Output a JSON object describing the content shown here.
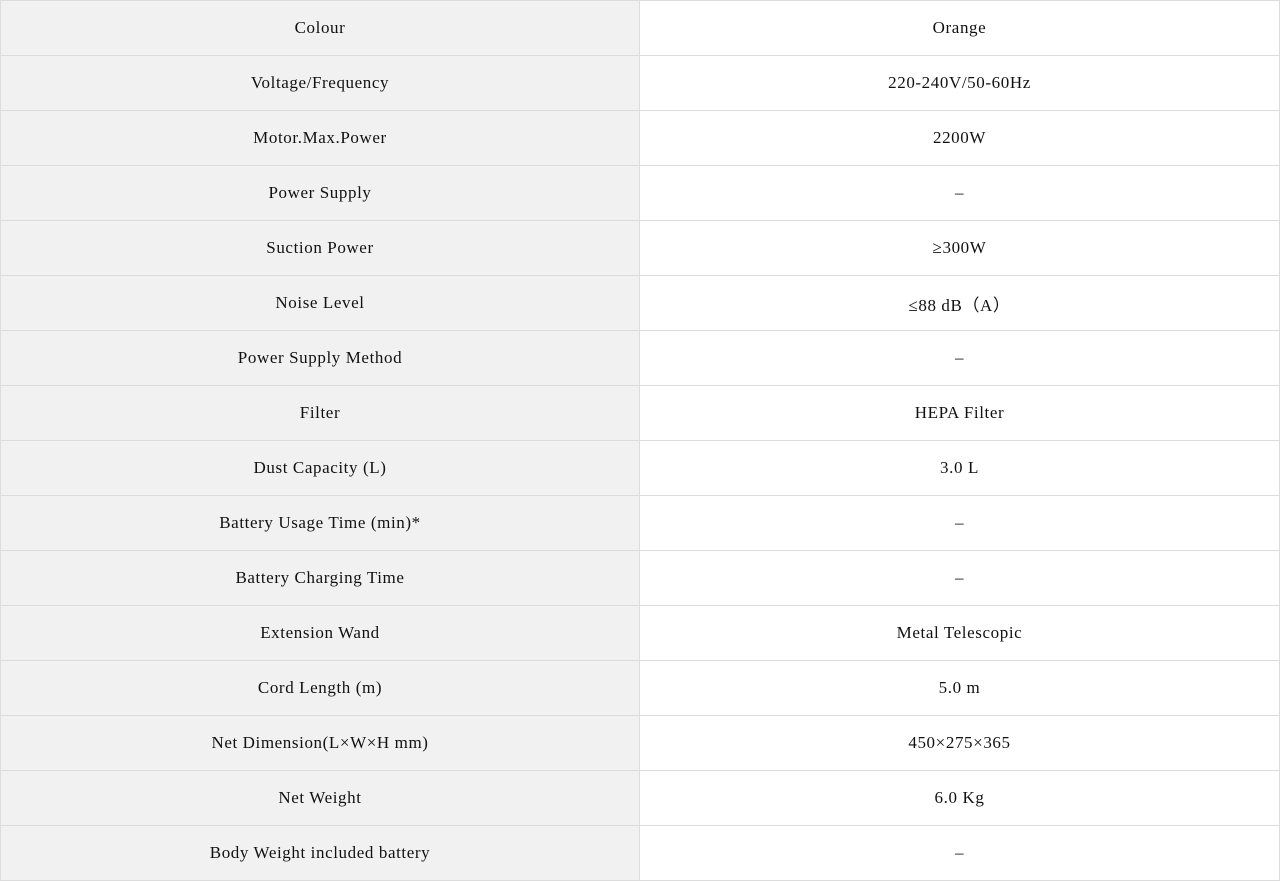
{
  "spec_table": {
    "rows": [
      {
        "label": "Colour",
        "value": "Orange"
      },
      {
        "label": "Voltage/Frequency",
        "value": "220-240V/50-60Hz"
      },
      {
        "label": "Motor.Max.Power",
        "value": "2200W"
      },
      {
        "label": "Power Supply",
        "value": "–"
      },
      {
        "label": "Suction Power",
        "value": "≥300W"
      },
      {
        "label": "Noise Level",
        "value": "≤88 dB（A）"
      },
      {
        "label": "Power Supply Method",
        "value": "–"
      },
      {
        "label": "Filter",
        "value": "HEPA Filter"
      },
      {
        "label": "Dust Capacity (L)",
        "value": "3.0 L"
      },
      {
        "label": "Battery Usage Time (min)*",
        "value": "–"
      },
      {
        "label": "Battery Charging Time",
        "value": "–"
      },
      {
        "label": "Extension Wand",
        "value": "Metal Telescopic"
      },
      {
        "label": "Cord Length (m)",
        "value": "5.0 m"
      },
      {
        "label": "Net Dimension(L×W×H mm)",
        "value": "450×275×365"
      },
      {
        "label": "Net  Weight",
        "value": "6.0 Kg"
      },
      {
        "label": "Body Weight included battery",
        "value": "–"
      }
    ]
  }
}
